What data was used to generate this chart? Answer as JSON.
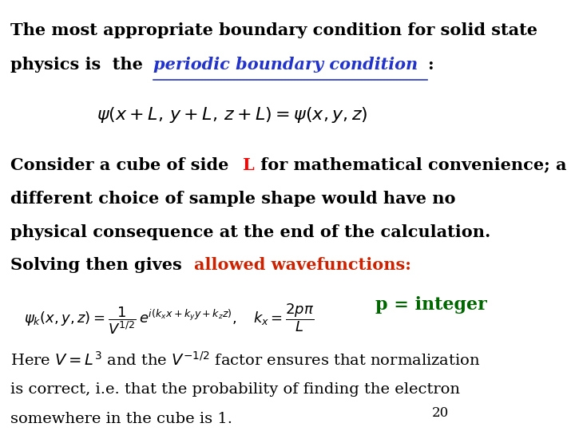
{
  "background_color": "#ffffff",
  "title_line1": "The most appropriate boundary condition for solid state",
  "title_line2_prefix": "physics is  the ",
  "title_line2_highlight": "periodic boundary condition",
  "title_line2_suffix": ":",
  "highlight_color": "#2233cc",
  "eq1": "$\\psi(x+L,\\, y+L,\\, z+L)= \\psi(x, y, z)$",
  "body_consider_prefix": "Consider a cube of side ",
  "body_consider_L": "L",
  "body_consider_suffix": " for mathematical convenience; a",
  "body_text1": "different choice of sample shape would have no",
  "body_text2": "physical consequence at the end of the calculation.",
  "body_text3_prefix": "Solving then gives ",
  "body_text3_highlight": "allowed wavefunctions:",
  "body_text3_highlight_color": "#cc2200",
  "eq2": "$\\psi_k(x,y,z)=\\dfrac{1}{V^{1/2}}\\,e^{i(k_x x+k_y y+k_z z)},\\quad k_x=\\dfrac{2p\\pi}{L}$",
  "p_integer": "p = integer",
  "p_integer_color": "#006600",
  "here_text1": "Here $V = L^3$ and the $V^{\\mathrm{-1/2}}$ factor ensures that normalization",
  "here_text2": "is correct, i.e. that the probability of finding the electron",
  "here_text3": "somewhere in the cube is 1.",
  "page_number": "20",
  "font_size_title": 15,
  "font_size_body": 15,
  "font_size_eq": 13,
  "font_size_p_integer": 16
}
